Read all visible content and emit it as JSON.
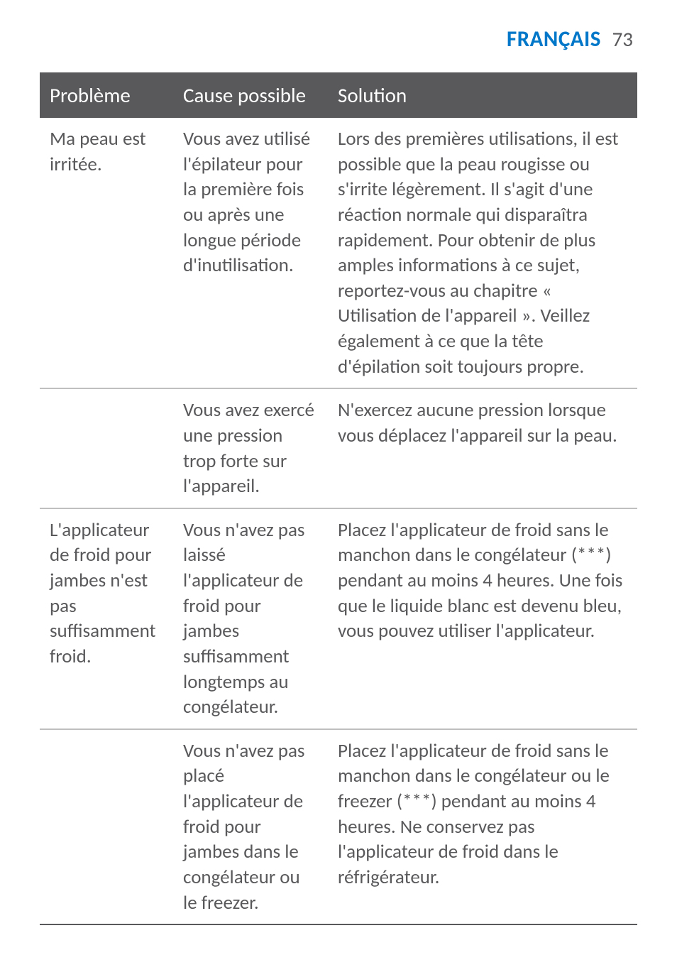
{
  "header": {
    "language": "FRANÇAIS",
    "page_number": "73",
    "language_color": "#0077c8",
    "page_number_color": "#59595b",
    "language_fontsize": 31,
    "page_fontsize": 29
  },
  "table": {
    "header_bg": "#59595b",
    "header_text_color": "#ffffff",
    "header_fontsize": 29,
    "body_text_color": "#59595b",
    "body_fontsize": 27,
    "rule_color_heavy": "#59595b",
    "rule_color_light": "#bfbfbf",
    "columns": [
      "Problème",
      "Cause possible",
      "Solution"
    ],
    "rows": [
      {
        "problem": "Ma peau est irritée.",
        "cause": "Vous avez utilisé l'épilateur pour la première fois ou après une longue période d'inutilisation.",
        "solution": "Lors des premières utilisations, il est possible que la peau rougisse ou s'irrite légèrement. Il s'agit d'une réaction normale qui disparaîtra rapidement. Pour obtenir de plus amples informations à ce sujet, reportez-vous au chapitre « Utilisation de l'appareil ». Veillez également à ce que la tête d'épilation soit toujours propre."
      },
      {
        "problem": "",
        "cause": "Vous avez exercé une pression trop forte sur l'appareil.",
        "solution": "N'exercez aucune pression lorsque vous déplacez l'appareil sur la peau."
      },
      {
        "problem": "L'applicateur de froid pour jambes n'est pas suffisamment froid.",
        "cause": "Vous n'avez pas laissé l'applicateur de froid pour jambes suffisamment longtemps au congélateur.",
        "solution": "Placez l'applicateur de froid sans le manchon dans le congélateur (***) pendant au moins 4 heures. Une fois que le liquide blanc est devenu bleu, vous pouvez utiliser l'applicateur."
      },
      {
        "problem": "",
        "cause": "Vous n'avez pas placé l'applicateur de froid pour jambes dans le congélateur ou le freezer.",
        "solution": "Placez l'applicateur de froid sans le manchon dans le congélateur ou le freezer (***) pendant au moins 4 heures. Ne conservez pas l'applicateur de froid dans le réfrigérateur."
      }
    ]
  }
}
